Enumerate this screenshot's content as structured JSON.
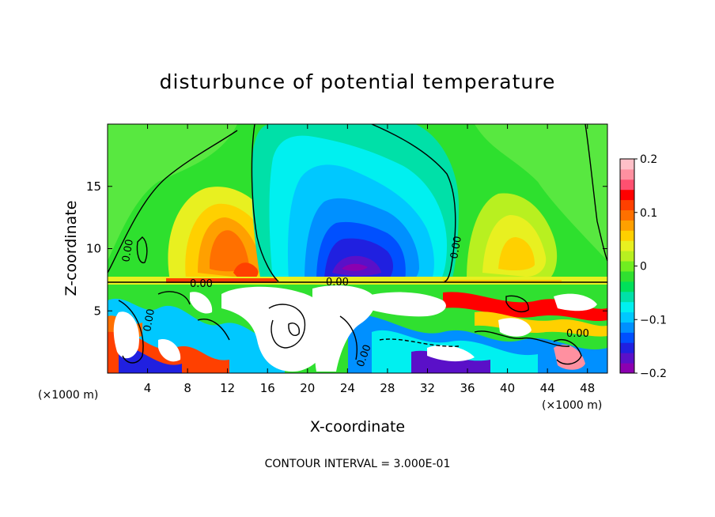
{
  "chart_data": {
    "type": "heatmap",
    "title": "disturbunce of potential temperature",
    "xlabel": "X-coordinate",
    "ylabel": "Z-coordinate",
    "x_unit_left": "(×1000 m)",
    "x_unit_right": "(×1000 m)",
    "xlim": [
      0,
      50
    ],
    "ylim": [
      0,
      20
    ],
    "x_ticks": [
      4,
      8,
      12,
      16,
      20,
      24,
      28,
      32,
      36,
      40,
      44,
      48
    ],
    "y_ticks": [
      5,
      10,
      15
    ],
    "colorbar": {
      "ticks": [
        "0.2",
        "0.1",
        "0",
        "−0.1",
        "−0.2"
      ],
      "tick_values": [
        0.2,
        0.1,
        0,
        -0.1,
        -0.2
      ],
      "range": [
        -0.2,
        0.2
      ],
      "colors": [
        "#8b00b0",
        "#5a10c8",
        "#2020e0",
        "#0050ff",
        "#0090ff",
        "#00c8ff",
        "#00f0f0",
        "#00e0a8",
        "#00e05a",
        "#30e030",
        "#70ee20",
        "#b8f020",
        "#e8f020",
        "#ffd000",
        "#ffa000",
        "#ff7000",
        "#ff4000",
        "#ff0000",
        "#ff5070",
        "#ff90a0",
        "#ffc0c8"
      ]
    },
    "contour_label": "0.00",
    "footer": "CONTOUR INTERVAL = 3.000E-01"
  }
}
